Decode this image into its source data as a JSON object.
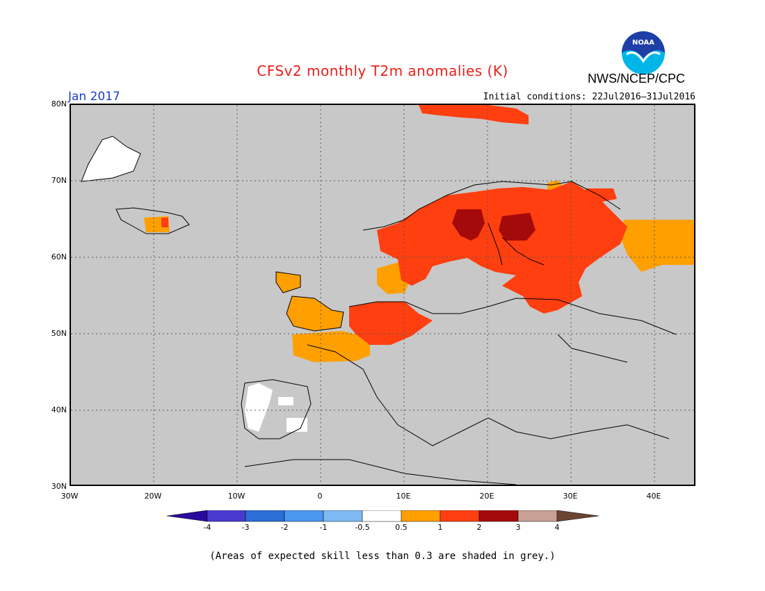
{
  "title": "CFSv2 monthly T2m anomalies (K)",
  "agency": "NWS/NCEP/CPC",
  "logo_text": "NOAA",
  "month": "Jan 2017",
  "initial_conditions": "Initial conditions: 22Jul2016–31Jul2016",
  "footnote": "(Areas of expected skill less than 0.3 are shaded in grey.)",
  "map": {
    "lon_range": [
      -30,
      45
    ],
    "lat_range": [
      30,
      80
    ],
    "lat_labels": [
      "80N",
      "70N",
      "60N",
      "50N",
      "40N",
      "30N"
    ],
    "lon_labels": [
      "30W",
      "20W",
      "10W",
      "0",
      "10E",
      "20E",
      "30E",
      "40E"
    ],
    "background_color": "#c8c8c8"
  },
  "colorbar": {
    "labels": [
      "-4",
      "-3",
      "-2",
      "-1",
      "-0.5",
      "0.5",
      "1",
      "2",
      "3",
      "4"
    ],
    "colors": [
      "#2a0a9e",
      "#4a3ad0",
      "#2b6ed6",
      "#4a97ef",
      "#7fbaf4",
      "#ffffff",
      "#ff9f00",
      "#ff3f10",
      "#a50a0a",
      "#c8a095",
      "#6b4432"
    ]
  },
  "anomaly_regions": [
    {
      "category": "0.5",
      "color": "#ff9f00",
      "area": "Iceland"
    },
    {
      "category": "0.5",
      "color": "#ff9f00",
      "area": "British Isles"
    },
    {
      "category": "0.5",
      "color": "#ff9f00",
      "area": "France"
    },
    {
      "category": "0.5",
      "color": "#ff9f00",
      "area": "Denmark"
    },
    {
      "category": "0.5",
      "color": "#ff9f00",
      "area": "Western Russia"
    },
    {
      "category": "1",
      "color": "#ff3f10",
      "area": "Scandinavia"
    },
    {
      "category": "1",
      "color": "#ff3f10",
      "area": "Finland / NW Russia"
    },
    {
      "category": "1",
      "color": "#ff3f10",
      "area": "Baltics / Belarus"
    },
    {
      "category": "1",
      "color": "#ff3f10",
      "area": "Benelux / Germany"
    },
    {
      "category": "1",
      "color": "#ff3f10",
      "area": "Svalbard"
    },
    {
      "category": "2",
      "color": "#a50a0a",
      "area": "Gulf of Bothnia"
    },
    {
      "category": "white",
      "color": "#ffffff",
      "area": "Iberia"
    },
    {
      "category": "white",
      "color": "#ffffff",
      "area": "Greenland"
    }
  ]
}
